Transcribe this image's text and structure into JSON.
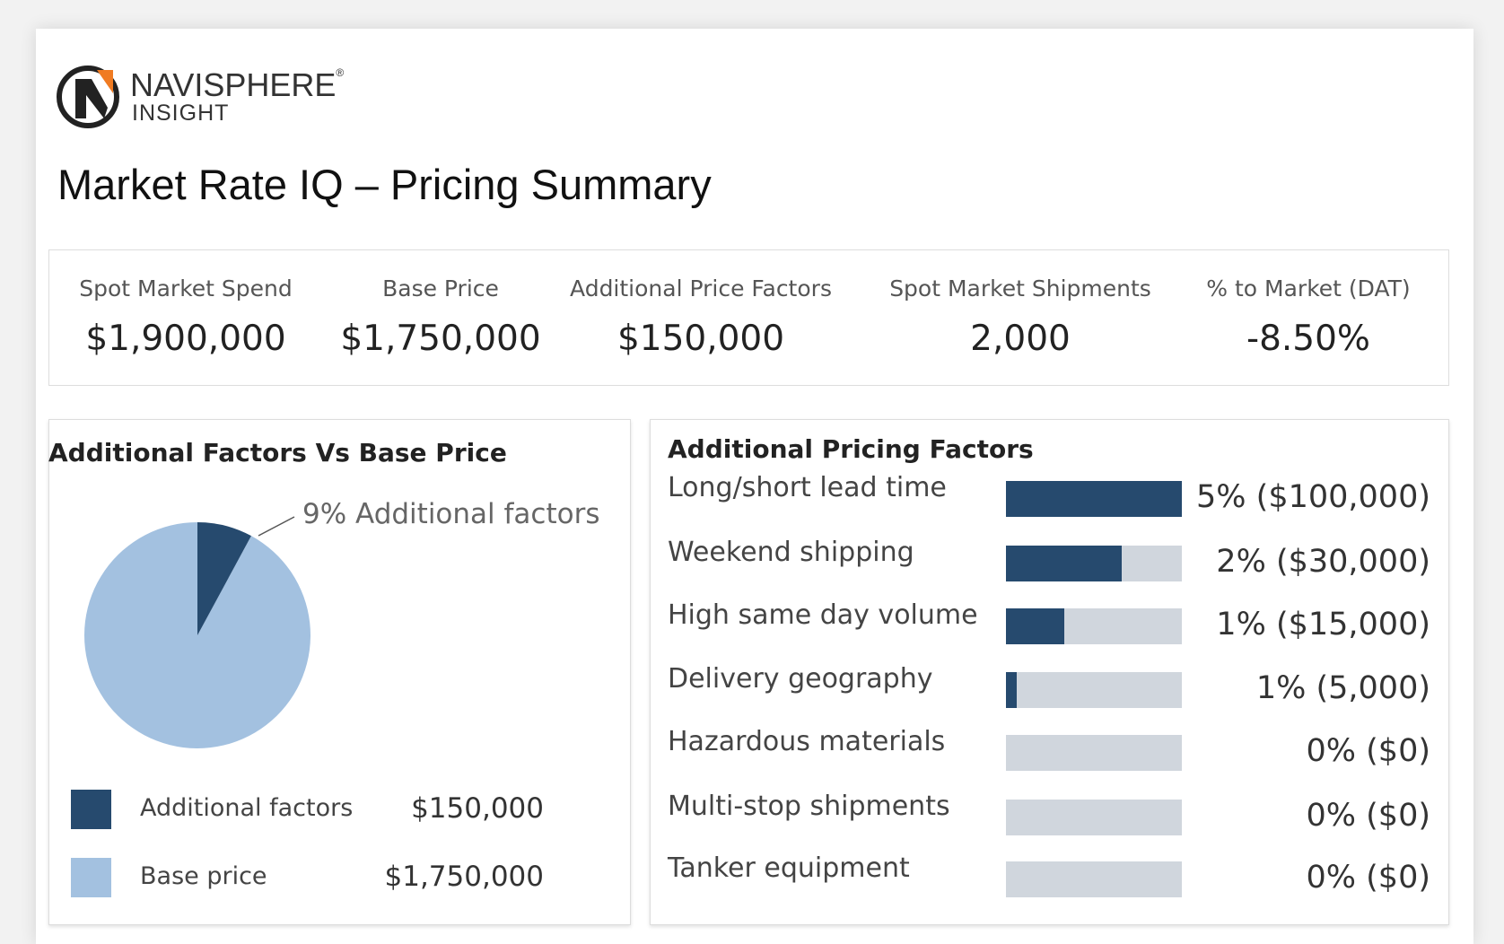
{
  "logo": {
    "line1": "NAVISPHERE",
    "mark": "®",
    "line2": "INSIGHT",
    "accent": "#f07b22"
  },
  "page_title": "Market Rate IQ – Pricing Summary",
  "stats": [
    {
      "label": "Spot Market Spend",
      "value": "$1,900,000"
    },
    {
      "label": "Base Price",
      "value": "$1,750,000"
    },
    {
      "label": "Additional Price Factors",
      "value": "$150,000"
    },
    {
      "label": "Spot Market Shipments",
      "value": "2,000"
    },
    {
      "label": "% to Market (DAT)",
      "value": "-8.50%"
    }
  ],
  "colors": {
    "dark": "#264a6e",
    "light": "#a3c1e0",
    "track": "#d0d6dd"
  },
  "chart_data": [
    {
      "type": "pie",
      "title": "Additional Factors Vs Base Price",
      "annotation": "9% Additional factors",
      "slices": [
        {
          "name": "Additional factors",
          "value": 150000,
          "display": "$150,000",
          "color": "#264a6e"
        },
        {
          "name": "Base price",
          "value": 1750000,
          "display": "$1,750,000",
          "color": "#a3c1e0"
        }
      ]
    },
    {
      "type": "bar",
      "title": "Additional Pricing Factors",
      "orientation": "horizontal",
      "rows": [
        {
          "label": "Long/short lead time",
          "value_text": "5% ($100,000)",
          "fill": 1.0
        },
        {
          "label": "Weekend shipping",
          "value_text": "2% ($30,000)",
          "fill": 0.66
        },
        {
          "label": "High same day volume",
          "value_text": "1% ($15,000)",
          "fill": 0.33
        },
        {
          "label": "Delivery geography",
          "value_text": "1% (5,000)",
          "fill": 0.06
        },
        {
          "label": "Hazardous materials",
          "value_text": "0% ($0)",
          "fill": 0
        },
        {
          "label": "Multi-stop shipments",
          "value_text": "0% ($0)",
          "fill": 0
        },
        {
          "label": "Tanker equipment",
          "value_text": "0% ($0)",
          "fill": 0
        }
      ]
    }
  ]
}
